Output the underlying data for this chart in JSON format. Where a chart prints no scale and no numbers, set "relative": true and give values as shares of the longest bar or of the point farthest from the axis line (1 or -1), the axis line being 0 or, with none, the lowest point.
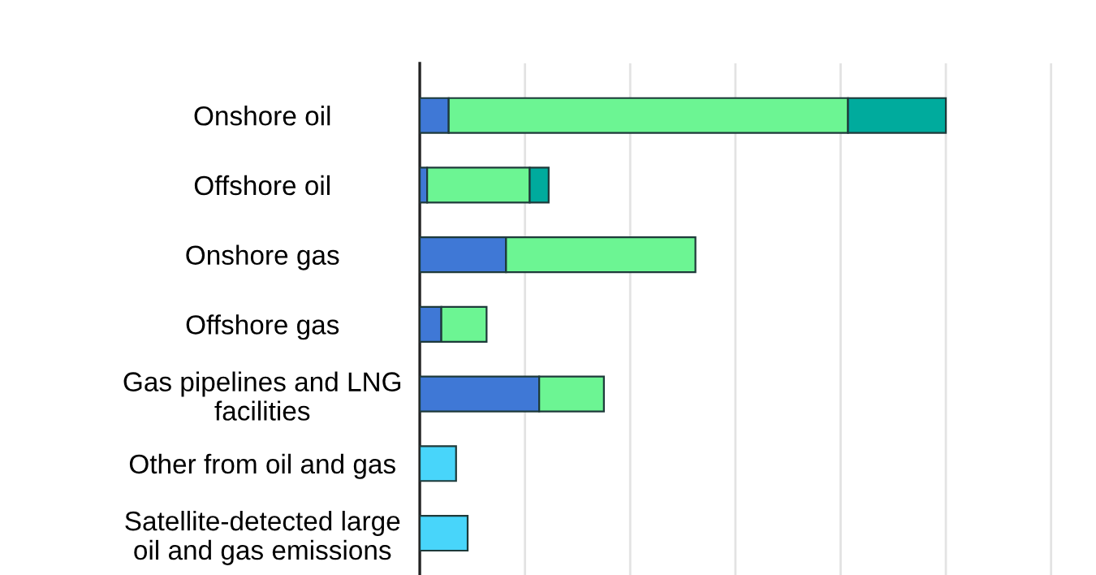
{
  "chart_data": {
    "type": "bar",
    "orientation": "horizontal",
    "stacked": true,
    "relative": true,
    "grid": "x",
    "categories": [
      "Onshore oil",
      "Offshore oil",
      "Onshore gas",
      "Offshore gas",
      "Gas pipelines and LNG\nfacilities",
      "Other from oil and gas",
      "Satellite-detected large\noil and gas emissions"
    ],
    "series": [
      {
        "color": "#3f78d6",
        "values": [
          0.055,
          0.014,
          0.164,
          0.041,
          0.227,
          null,
          null
        ]
      },
      {
        "color": "#6cf593",
        "values": [
          0.759,
          0.195,
          0.36,
          0.086,
          0.123,
          null,
          null
        ]
      },
      {
        "color": "#00ab9d",
        "values": [
          0.186,
          0.036,
          null,
          null,
          null,
          null,
          null
        ]
      },
      {
        "color": "#48d5fa",
        "values": [
          null,
          null,
          null,
          null,
          null,
          0.069,
          0.091
        ]
      }
    ]
  }
}
